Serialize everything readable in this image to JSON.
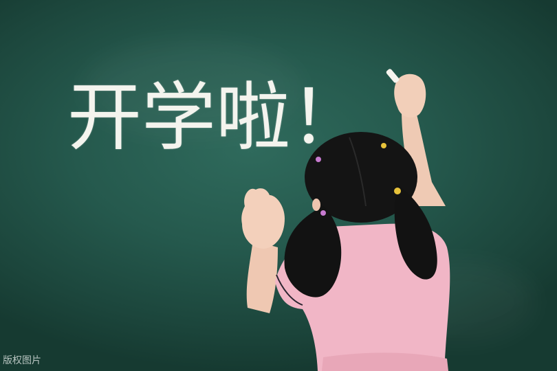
{
  "scene": {
    "board_color": "#27594d",
    "headline": "开学啦！",
    "watermark": "版权图片",
    "subject": {
      "shirt_color": "#f2b9c8",
      "hair_color": "#151515",
      "skin_color": "#f0cdb8",
      "chalk_color": "#f6f4ee"
    }
  }
}
